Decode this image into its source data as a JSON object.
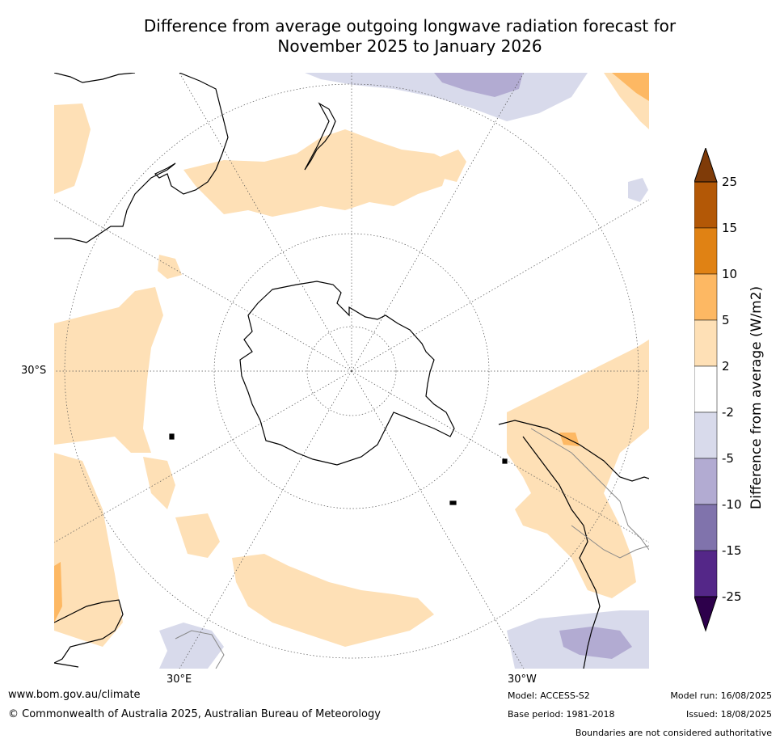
{
  "title_line1": "Difference from average outgoing longwave radiation forecast for",
  "title_line2": "November 2025 to January 2026",
  "map_labels": {
    "lat_30s": "30°S",
    "lon_30e": "30°E",
    "lon_30w": "30°W"
  },
  "colorbar": {
    "title": "Difference from average (W/m2)",
    "tick_labels": [
      "25",
      "15",
      "10",
      "5",
      "2",
      "-2",
      "-5",
      "-10",
      "-15",
      "-25"
    ],
    "colors": {
      "over": "#7f3b08",
      "b15_25": "#b35806",
      "b10_15": "#e08214",
      "b5_10": "#fdb863",
      "b2_5": "#fee0b6",
      "bm2_2": "#ffffff",
      "bm5_m2": "#d8daeb",
      "bm10_m5": "#b2abd2",
      "bm15_m10": "#8073ac",
      "bm25_m15": "#542788",
      "under": "#2d004b"
    }
  },
  "footer": {
    "website": "www.bom.gov.au/climate",
    "copyright": "© Commonwealth of Australia 2025, Australian Bureau of Meteorology",
    "model": "Model: ACCESS-S2",
    "base_period": "Base period: 1981-2018",
    "model_run": "Model run: 16/08/2025",
    "issued": "Issued: 18/08/2025",
    "disclaimer": "Boundaries are not considered authoritative"
  }
}
